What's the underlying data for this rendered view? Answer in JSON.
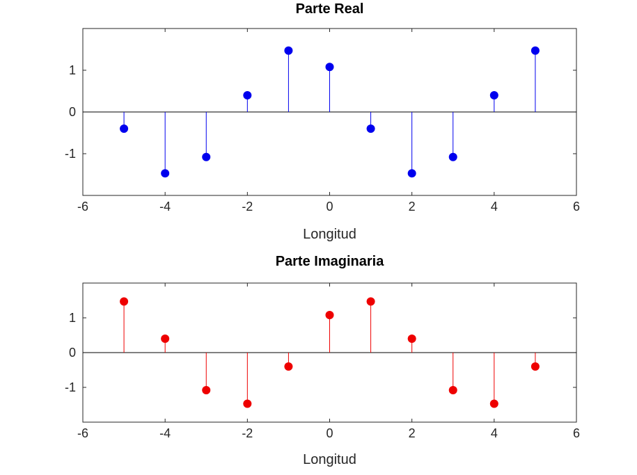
{
  "chart_data": [
    {
      "type": "stem",
      "title": "Parte Real",
      "xlabel": "Longitud",
      "ylabel": "",
      "color": "#0000ee",
      "xlim": [
        -6,
        6
      ],
      "ylim": [
        -2,
        2
      ],
      "xticks": [
        -6,
        -4,
        -2,
        0,
        2,
        4,
        6
      ],
      "yticks": [
        -1,
        0,
        1
      ],
      "grid": false,
      "x": [
        -5,
        -4,
        -3,
        -2,
        -1,
        0,
        1,
        2,
        3,
        4,
        5
      ],
      "y": [
        -0.4,
        -1.47,
        -1.08,
        0.4,
        1.47,
        1.08,
        -0.4,
        -1.47,
        -1.08,
        0.4,
        1.47
      ]
    },
    {
      "type": "stem",
      "title": "Parte Imaginaria",
      "xlabel": "Longitud",
      "ylabel": "",
      "color": "#ee0000",
      "xlim": [
        -6,
        6
      ],
      "ylim": [
        -2,
        2
      ],
      "xticks": [
        -6,
        -4,
        -2,
        0,
        2,
        4,
        6
      ],
      "yticks": [
        -1,
        0,
        1
      ],
      "grid": false,
      "x": [
        -5,
        -4,
        -3,
        -2,
        -1,
        0,
        1,
        2,
        3,
        4,
        5
      ],
      "y": [
        1.47,
        0.4,
        -1.08,
        -1.47,
        -0.4,
        1.08,
        1.47,
        0.4,
        -1.08,
        -1.47,
        -0.4
      ]
    }
  ]
}
